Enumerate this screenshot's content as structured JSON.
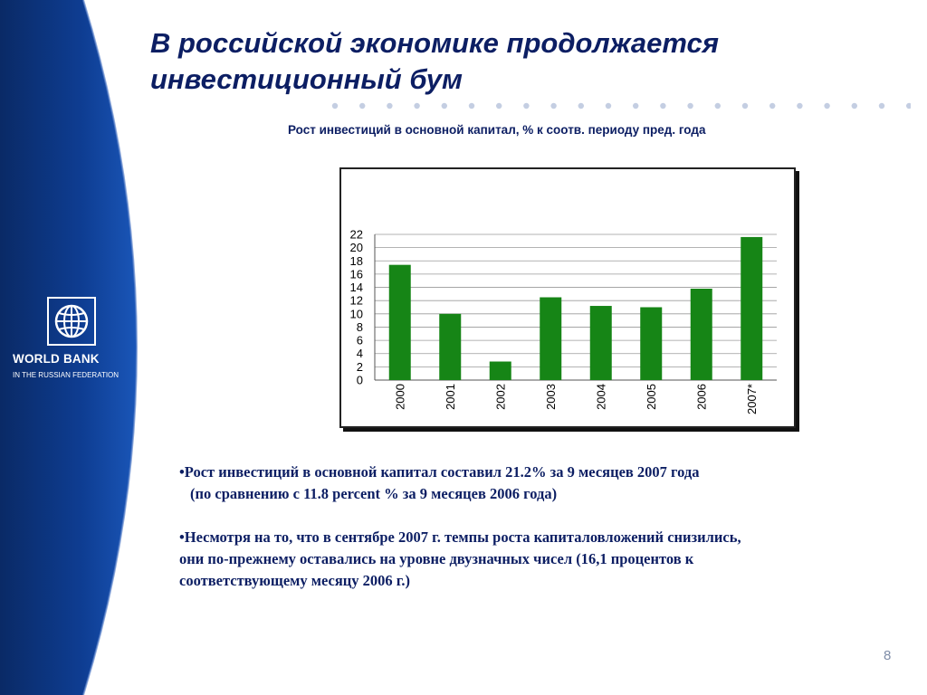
{
  "title": {
    "line1": "В российской экономике продолжается",
    "line2": "инвестиционный бум"
  },
  "logo": {
    "icon": "globe-icon",
    "name": "WORLD BANK",
    "subtitle": "IN THE RUSSIAN FEDERATION"
  },
  "colors": {
    "sidebar": "#0d3a8c",
    "title": "#0c1e63",
    "bar": "#168516",
    "dots": "#c4cee2"
  },
  "chart_data": {
    "type": "bar",
    "title": "Рост инвестиций в основной капитал, % к соотв. периоду пред. года",
    "categories": [
      "2000",
      "2001",
      "2002",
      "2003",
      "2004",
      "2005",
      "2006",
      "2007*"
    ],
    "values": [
      17.4,
      10.0,
      2.8,
      12.5,
      11.2,
      11.0,
      13.8,
      21.6
    ],
    "yticks": [
      "0",
      "2",
      "4",
      "6",
      "8",
      "10",
      "12",
      "14",
      "16",
      "18",
      "20",
      "22"
    ],
    "ylim": [
      0,
      22
    ],
    "grid": true,
    "xlabel": "",
    "ylabel": ""
  },
  "body": {
    "p1_line1": "•Рост инвестиций в основной капитал составил 21.2% за 9 месяцев 2007 года",
    "p1_line2": "(по сравнению с 11.8 percent % за 9 месяцев 2006 года)",
    "p2_line1": "•Несмотря на то, что в сентябре 2007 г. темпы роста капиталовложений снизились,",
    "p2_line2": "они по-прежнему оставались на уровне двузначных чисел (16,1 процентов к",
    "p2_line3": "соответствующему месяцу 2006 г.)"
  },
  "page_number": "8"
}
